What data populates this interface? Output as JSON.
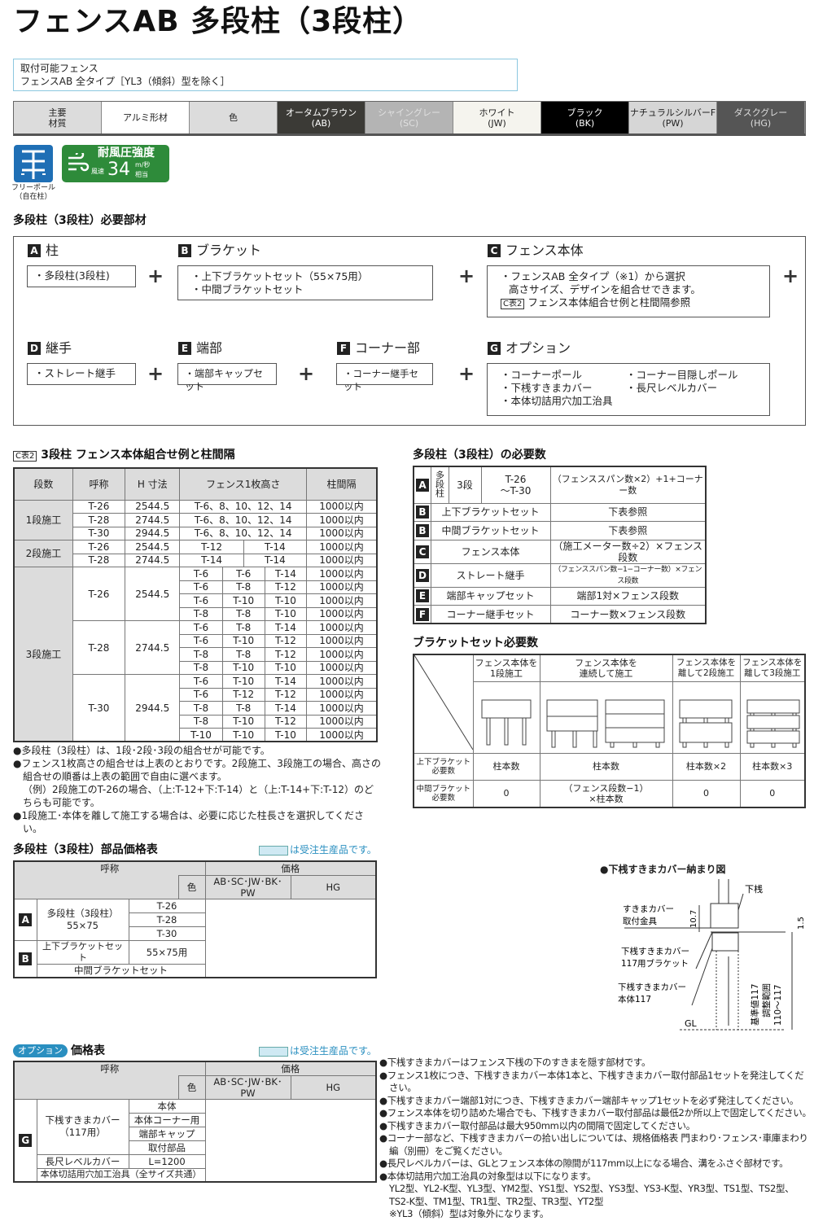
{
  "title": "フェンスAB 多段柱（3段柱）",
  "info": {
    "line1": "取付可能フェンス",
    "line2": "フェンスAB 全タイプ［YL3（傾斜）型を除く］"
  },
  "material_row": [
    {
      "label": "主要\n材質",
      "bg": "#dcdcdc",
      "fg": "#222"
    },
    {
      "label": "アルミ形材",
      "bg": "#ffffff",
      "fg": "#222"
    },
    {
      "label": "色",
      "bg": "#dcdcdc",
      "fg": "#222"
    },
    {
      "label": "オータムブラウン\n(AB)",
      "bg": "#3b3a36",
      "fg": "#ffffff"
    },
    {
      "label": "シャイングレー\n(SC)",
      "bg": "#b4b4b4",
      "fg": "#e0e0e0"
    },
    {
      "label": "ホワイト\n(JW)",
      "bg": "#f5f4ee",
      "fg": "#222"
    },
    {
      "label": "ブラック\n(BK)",
      "bg": "#000000",
      "fg": "#ffffff"
    },
    {
      "label": "ナチュラルシルバーF\n(PW)",
      "bg": "#d6d6d6",
      "fg": "#222"
    },
    {
      "label": "ダスクグレー\n(HG)",
      "bg": "#555555",
      "fg": "#dddddd"
    }
  ],
  "badges": {
    "free_pole_caption1": "フリーポール",
    "free_pole_caption2": "（自在柱）",
    "wind_title": "耐風圧強度",
    "wind_prefix": "風速",
    "wind_value": "34",
    "wind_unit": "m/秒",
    "wind_suffix": "相当",
    "free_pole_color": "#1f6fb5",
    "wind_color": "#2e8b3a"
  },
  "parts": {
    "heading": "多段柱（3段柱）必要部材",
    "A": {
      "key": "A",
      "label": "柱",
      "items": [
        "・多段柱(3段柱)"
      ]
    },
    "B": {
      "key": "B",
      "label": "ブラケット",
      "items": [
        "・上下ブラケットセット（55×75用）",
        "・中間ブラケットセット"
      ]
    },
    "C": {
      "key": "C",
      "label": "フェンス本体",
      "items": [
        "・フェンスAB 全タイプ（※1）から選択",
        "高さサイズ、デザインを組合せできます。"
      ],
      "ref_tag": "C表2",
      "ref_text": "フェンス本体組合せ例と柱間隔参照"
    },
    "D": {
      "key": "D",
      "label": "継手",
      "items": [
        "・ストレート継手"
      ]
    },
    "E": {
      "key": "E",
      "label": "端部",
      "items": [
        "・端部キャップセット"
      ]
    },
    "F": {
      "key": "F",
      "label": "コーナー部",
      "items": [
        "・コーナー継手セット"
      ]
    },
    "G": {
      "key": "G",
      "label": "オプション",
      "items": [
        "・コーナーポール",
        "・コーナー目隠しポール",
        "・下桟すきまカバー",
        "・長尺レベルカバー",
        "・本体切詰用穴加工治具"
      ]
    },
    "plus": "+"
  },
  "c2": {
    "tag": "C表2",
    "heading": "3段柱 フェンス本体組合せ例と柱間隔",
    "headers": [
      "段数",
      "呼称",
      "H 寸法",
      "フェンス1枚高さ",
      "柱間隔"
    ],
    "groups": [
      {
        "stage": "1段施工",
        "models": [
          {
            "name": "T-26",
            "h": "2544.5",
            "rows": [
              {
                "heights": [
                  "T-6、8、10、12、14"
                ],
                "spacing": "1000以内"
              }
            ]
          },
          {
            "name": "T-28",
            "h": "2744.5",
            "rows": [
              {
                "heights": [
                  "T-6、8、10、12、14"
                ],
                "spacing": "1000以内"
              }
            ]
          },
          {
            "name": "T-30",
            "h": "2944.5",
            "rows": [
              {
                "heights": [
                  "T-6、8、10、12、14"
                ],
                "spacing": "1000以内"
              }
            ]
          }
        ]
      },
      {
        "stage": "2段施工",
        "models": [
          {
            "name": "T-26",
            "h": "2544.5",
            "rows": [
              {
                "heights": [
                  "T-12",
                  "T-14"
                ],
                "spacing": "1000以内"
              }
            ]
          },
          {
            "name": "T-28",
            "h": "2744.5",
            "rows": [
              {
                "heights": [
                  "T-14",
                  "T-14"
                ],
                "spacing": "1000以内"
              }
            ]
          }
        ]
      },
      {
        "stage": "3段施工",
        "models": [
          {
            "name": "T-26",
            "h": "2544.5",
            "rows": [
              {
                "heights": [
                  "T-6",
                  "T-6",
                  "T-14"
                ],
                "spacing": "1000以内"
              },
              {
                "heights": [
                  "T-6",
                  "T-8",
                  "T-12"
                ],
                "spacing": "1000以内"
              },
              {
                "heights": [
                  "T-6",
                  "T-10",
                  "T-10"
                ],
                "spacing": "1000以内"
              },
              {
                "heights": [
                  "T-8",
                  "T-8",
                  "T-10"
                ],
                "spacing": "1000以内"
              }
            ]
          },
          {
            "name": "T-28",
            "h": "2744.5",
            "rows": [
              {
                "heights": [
                  "T-6",
                  "T-8",
                  "T-14"
                ],
                "spacing": "1000以内"
              },
              {
                "heights": [
                  "T-6",
                  "T-10",
                  "T-12"
                ],
                "spacing": "1000以内"
              },
              {
                "heights": [
                  "T-8",
                  "T-8",
                  "T-12"
                ],
                "spacing": "1000以内"
              },
              {
                "heights": [
                  "T-8",
                  "T-10",
                  "T-10"
                ],
                "spacing": "1000以内"
              }
            ]
          },
          {
            "name": "T-30",
            "h": "2944.5",
            "rows": [
              {
                "heights": [
                  "T-6",
                  "T-10",
                  "T-14"
                ],
                "spacing": "1000以内"
              },
              {
                "heights": [
                  "T-6",
                  "T-12",
                  "T-12"
                ],
                "spacing": "1000以内"
              },
              {
                "heights": [
                  "T-8",
                  "T-8",
                  "T-14"
                ],
                "spacing": "1000以内"
              },
              {
                "heights": [
                  "T-8",
                  "T-10",
                  "T-12"
                ],
                "spacing": "1000以内"
              },
              {
                "heights": [
                  "T-10",
                  "T-10",
                  "T-10"
                ],
                "spacing": "1000以内"
              }
            ]
          }
        ]
      }
    ],
    "notes": [
      "●多段柱（3段柱）は、1段･2段･3段の組合せが可能です。",
      "●フェンス1枚高さの組合せは上表のとおりです。2段施工、3段施工の場合、高さの組合せの順番は上表の範囲で自由に選べます。",
      "（例）2段施工のT-26の場合、（上:T-12+下:T-14）と（上:T-14+下:T-12）のどちらも可能です。",
      "●1段施工･本体を離して施工する場合は、必要に応じた柱長さを選択してください。"
    ]
  },
  "required": {
    "heading": "多段柱（3段柱）の必要数",
    "rowA": {
      "key": "A",
      "c1": "多段柱",
      "c2": "3段",
      "c3": "T-26\n～T-30",
      "value": "（フェンススパン数×2）+1+コーナー数"
    },
    "rows": [
      {
        "key": "B",
        "name": "上下ブラケットセット",
        "value": "下表参照"
      },
      {
        "key": "B",
        "name": "中間ブラケットセット",
        "value": "下表参照"
      },
      {
        "key": "C",
        "name": "フェンス本体",
        "value": "（施工メーター数÷2）×フェンス段数"
      },
      {
        "key": "D",
        "name": "ストレート継手",
        "value": "（フェンススパン数−1−コーナー数）×フェンス段数"
      },
      {
        "key": "E",
        "name": "端部キャップセット",
        "value": "端部1対×フェンス段数"
      },
      {
        "key": "F",
        "name": "コーナー継手セット",
        "value": "コーナー数×フェンス段数"
      }
    ]
  },
  "bracket": {
    "heading": "ブラケットセット必要数",
    "cols": [
      "フェンス本体を\n1段施工",
      "フェンス本体を\n連続して施工",
      "フェンス本体を\n離して2段施工",
      "フェンス本体を\n離して3段施工"
    ],
    "row1": {
      "label": "上下ブラケット\n必要数",
      "values": [
        "柱本数",
        "柱本数",
        "柱本数×2",
        "柱本数×3"
      ]
    },
    "row2": {
      "label": "中間ブラケット\n必要数",
      "values": [
        "0",
        "（フェンス段数−1）\n×柱本数",
        "0",
        "0"
      ]
    }
  },
  "price_parts": {
    "heading": "多段柱（3段柱）部品価格表",
    "order_note": "は受注生産品です。",
    "h_name": "呼称",
    "h_price": "価格",
    "h_color": "色",
    "h_c1": "AB･SC･JW･BK･PW",
    "h_c2": "HG",
    "A_key": "A",
    "A_name": "多段柱（3段柱）\n55×75",
    "A_sizes": [
      "T-26",
      "T-28",
      "T-30"
    ],
    "B_key": "B",
    "B1_name": "上下ブラケットセット",
    "B1_size": "55×75用",
    "B2_name": "中間ブラケットセット"
  },
  "price_option": {
    "tag": "オプション",
    "heading": "価格表",
    "order_note": "は受注生産品です。",
    "h_name": "呼称",
    "h_price": "価格",
    "h_color": "色",
    "h_c1": "AB･SC･JW･BK･PW",
    "h_c2": "HG",
    "G_key": "G",
    "cover_name": "下桟すきまカバー\n（117用）",
    "cover_items": [
      "本体",
      "本体コーナー用",
      "端部キャップ",
      "取付部品"
    ],
    "level_name": "長尺レベルカバー",
    "level_size": "L=1200",
    "jig_name": "本体切詰用穴加工治具（全サイズ共通）"
  },
  "diagram": {
    "heading": "●下桟すきまカバー納まり図",
    "l_bottom_rail": "下桟",
    "l_fitting1": "すきまカバー",
    "l_fitting2": "取付金具",
    "l_bracket1": "下桟すきまカバー",
    "l_bracket2": "117用ブラケット",
    "l_body1": "下桟すきまカバー",
    "l_body2": "本体117",
    "d_107": "10.7",
    "d_15": "1.5",
    "d_std": "基準値117",
    "d_range1": "調整範囲",
    "d_range2": "110〜117",
    "gl": "GL"
  },
  "option_notes": [
    "●下桟すきまカバーはフェンス下桟の下のすきまを隠す部材です。",
    "●フェンス1枚につき、下桟すきまカバー本体1本と、下桟すきまカバー取付部品1セットを発注してください。",
    "●下桟すきまカバー端部1対につき、下桟すきまカバー端部キャップ1セットを必ず発注してください。",
    "●フェンス本体を切り詰めた場合でも、下桟すきまカバー取付部品は最低2か所以上で固定してください。",
    "●下桟すきまカバー取付部品は最大950mm以内の間隔で固定してください。",
    "●コーナー部など、下桟すきまカバーの拾い出しについては、規格価格表 門まわり･フェンス･車庫まわり編（別冊）をご覧ください。",
    "●長尺レベルカバーは、GLとフェンス本体の隙間が117mm以上になる場合、溝をふさぐ部材です。",
    "●本体切詰用穴加工治具の対象型は以下になります。",
    "YL2型、YL2-K型、YL3型、YM2型、YS1型、YS2型、YS3型、YS3-K型、YR3型、TS1型、TS2型、TS2-K型、TM1型、TR1型、TR2型、TR3型、YT2型",
    "※YL3（傾斜）型は対象外になります。"
  ]
}
